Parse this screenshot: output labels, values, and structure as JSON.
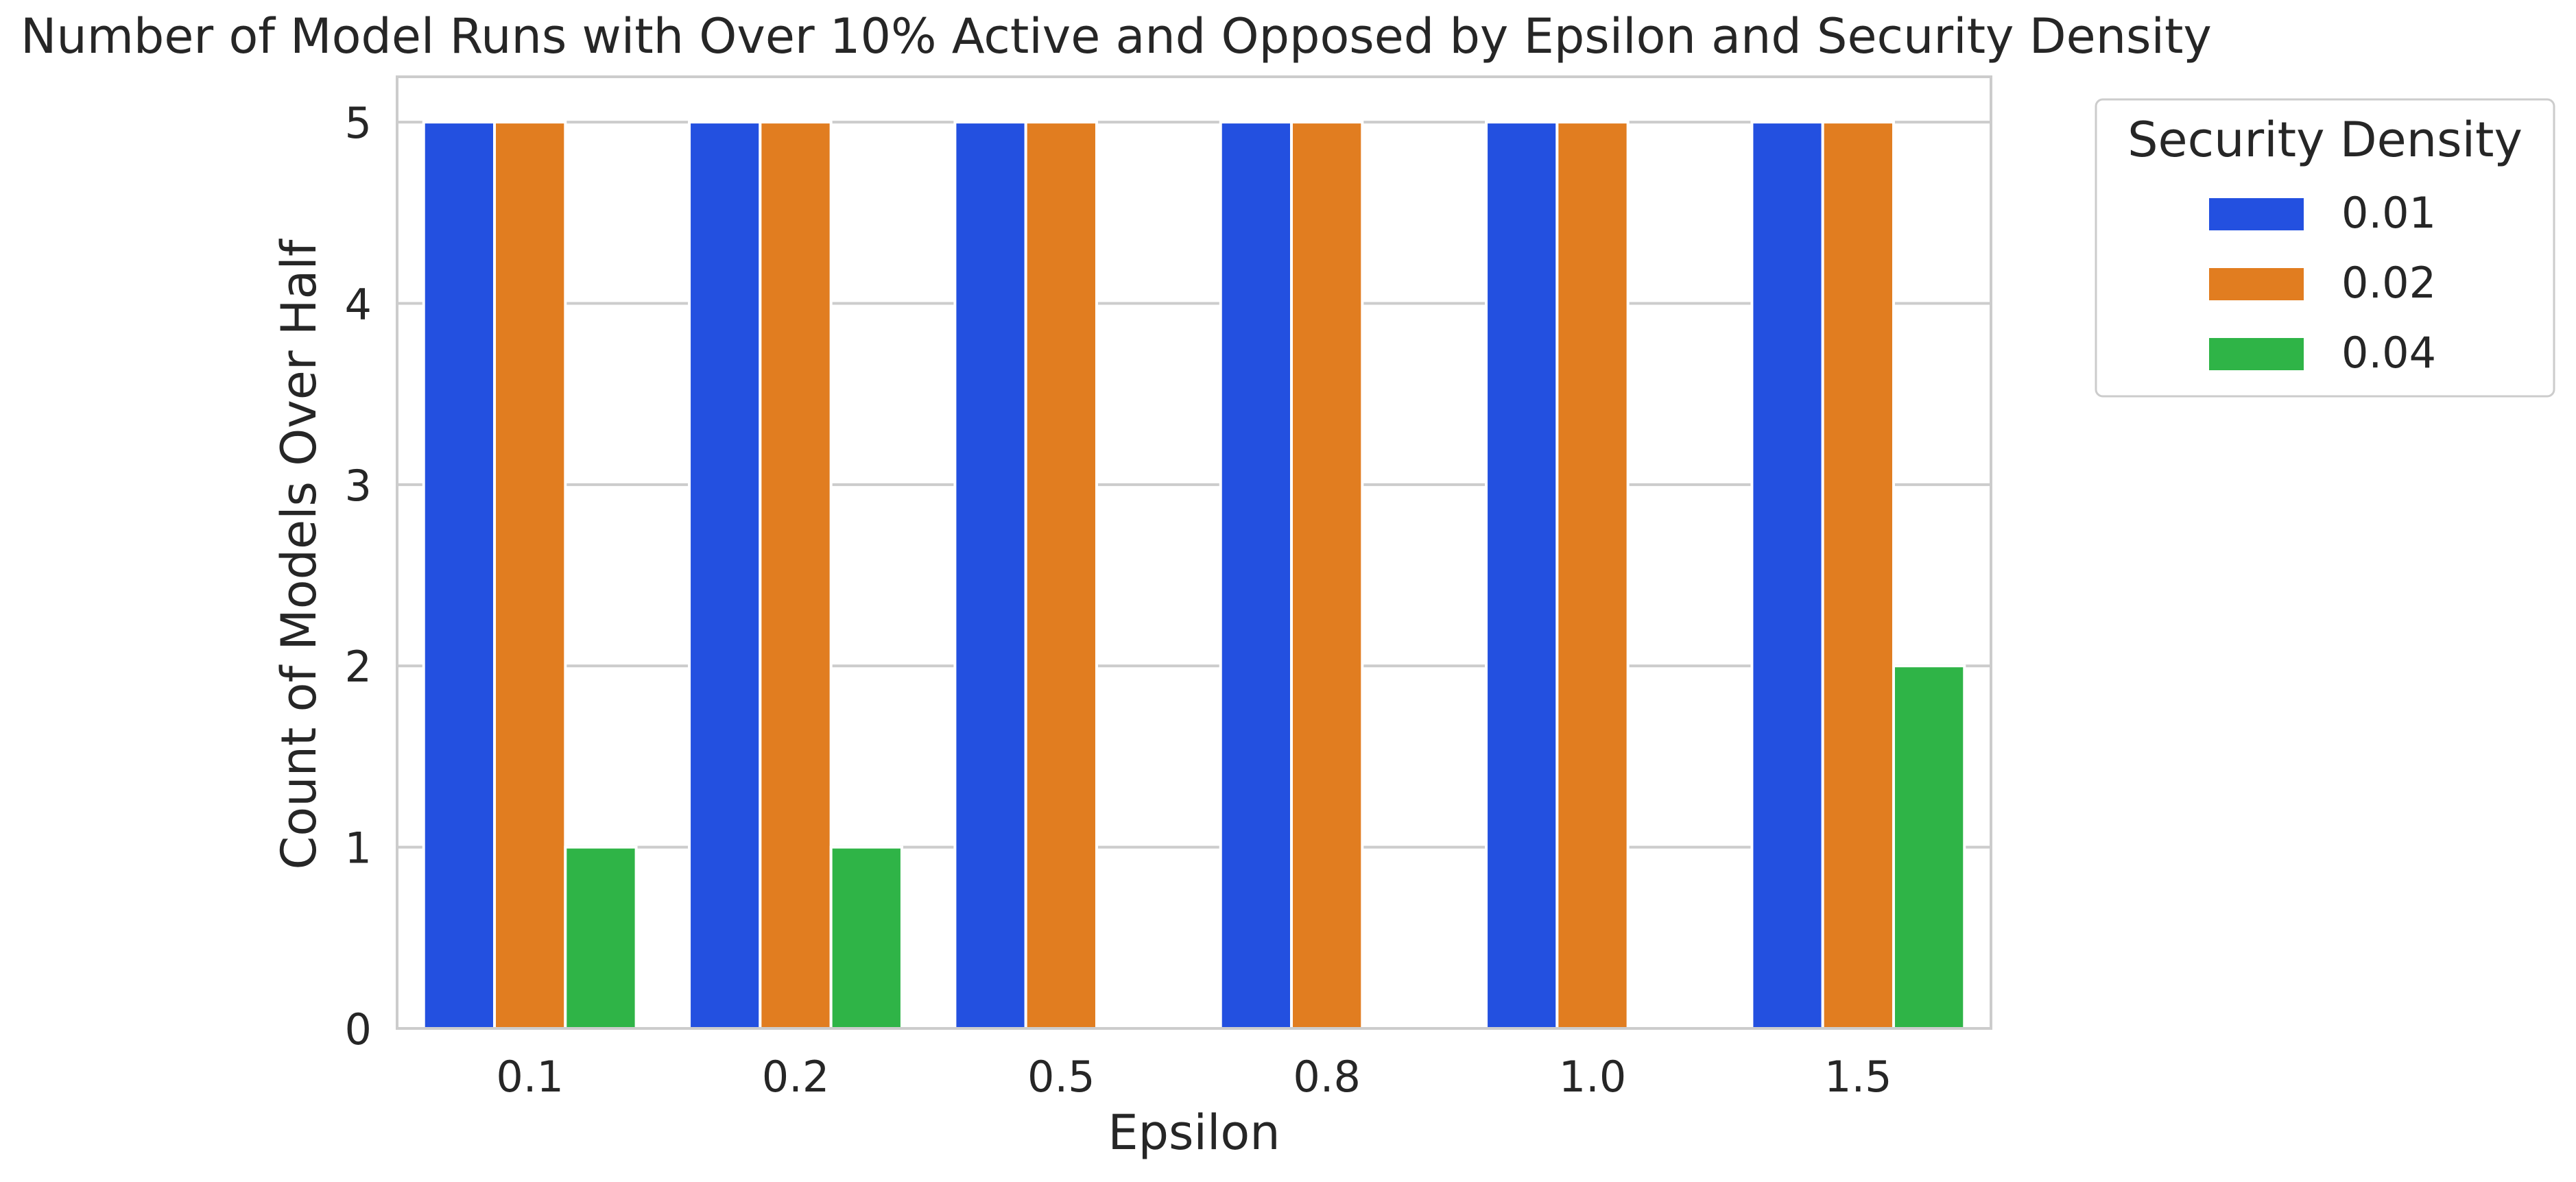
{
  "chart_data": {
    "type": "bar",
    "title": "Number of Model Runs with Over 10% Active and Opposed by Epsilon and Security Density",
    "xlabel": "Epsilon",
    "ylabel": "Count of Models Over Half",
    "categories": [
      "0.1",
      "0.2",
      "0.5",
      "0.8",
      "1.0",
      "1.5"
    ],
    "series": [
      {
        "name": "0.01",
        "color": "#2350e0",
        "values": [
          5,
          5,
          5,
          5,
          5,
          5
        ]
      },
      {
        "name": "0.02",
        "color": "#e17d20",
        "values": [
          5,
          5,
          5,
          5,
          5,
          5
        ]
      },
      {
        "name": "0.04",
        "color": "#2fb447",
        "values": [
          1,
          1,
          0,
          0,
          0,
          2
        ]
      }
    ],
    "yticks": [
      "0",
      "1",
      "2",
      "3",
      "4",
      "5"
    ],
    "ylim": [
      0,
      5.25
    ],
    "grid": true,
    "legend": {
      "title": "Security Density",
      "position": "outside-top-right"
    }
  }
}
